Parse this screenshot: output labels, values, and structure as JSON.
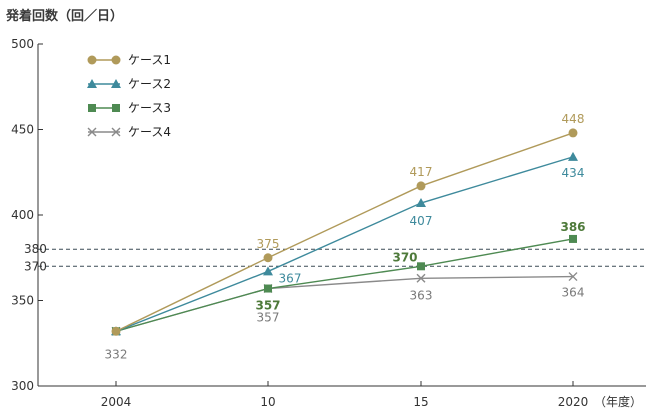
{
  "chart_data": {
    "type": "line",
    "ylabel": "発着回数（回／日）",
    "x_unit_label": "（年度）",
    "categories": [
      "2004",
      "10",
      "15",
      "2020"
    ],
    "ylim": [
      300,
      500
    ],
    "yticks": [
      "300",
      "350",
      "400",
      "450",
      "500"
    ],
    "grid": false,
    "legend_position": "top-left",
    "reference_lines": [
      {
        "value": 380,
        "label": "380"
      },
      {
        "value": 370,
        "label": "370"
      }
    ],
    "series": [
      {
        "name": "ケース1",
        "color": "#b09a5a",
        "marker": "circle",
        "values": [
          332,
          375,
          417,
          448
        ],
        "labels": [
          null,
          "375",
          "417",
          "448"
        ]
      },
      {
        "name": "ケース2",
        "color": "#3e8a9c",
        "marker": "triangle",
        "values": [
          332,
          367,
          407,
          434
        ],
        "labels": [
          null,
          "367",
          "407",
          "434"
        ]
      },
      {
        "name": "ケース3",
        "color": "#4e8a52",
        "marker": "square",
        "values": [
          332,
          357,
          370,
          386
        ],
        "labels": [
          null,
          "357",
          "370",
          "386"
        ]
      },
      {
        "name": "ケース4",
        "color": "#8a8a8a",
        "marker": "x",
        "values": [
          332,
          357,
          363,
          364
        ],
        "labels": [
          "332",
          "357",
          "363",
          "364"
        ]
      }
    ]
  }
}
